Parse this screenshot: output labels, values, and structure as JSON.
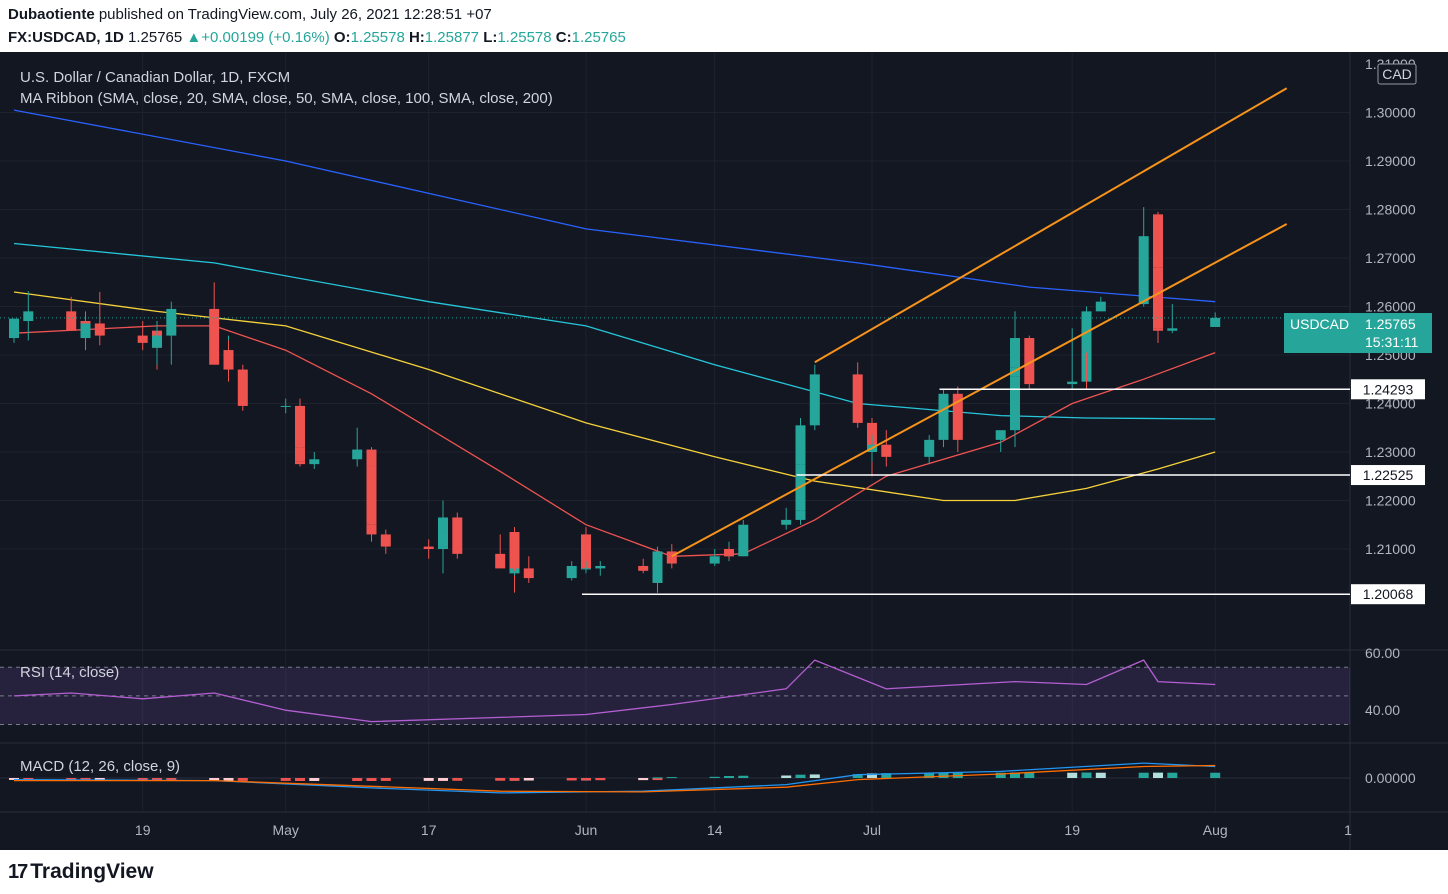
{
  "header": {
    "author": "Dubaotiente",
    "published": "published on TradingView.com, July 26, 2021 12:28:51 +07",
    "symbol": "FX:USDCAD, 1D",
    "price": "1.25765",
    "change": "+0.00199 (+0.16%)",
    "o_label": "O:",
    "o": "1.25578",
    "h_label": "H:",
    "h": "1.25877",
    "l_label": "L:",
    "l": "1.25578",
    "c_label": "C:",
    "c": "1.25765"
  },
  "legend": {
    "title": "U.S. Dollar / Canadian Dollar, 1D, FXCM",
    "ma": "MA Ribbon (SMA, close, 20, SMA, close, 50, SMA, close, 100, SMA, close, 200)",
    "rsi": "RSI (14, close)",
    "macd": "MACD (12, 26, close, 9)"
  },
  "price_scale": {
    "currency": "CAD",
    "ticks": [
      "1.30000",
      "1.29000",
      "1.28000",
      "1.27000",
      "1.26000",
      "1.25000",
      "1.24000",
      "1.23000",
      "1.22000",
      "1.21000"
    ],
    "top_partial": "1.31000"
  },
  "last_price": {
    "symbol": "USDCAD",
    "value": "1.25765",
    "countdown": "15:31:11"
  },
  "levels": [
    {
      "value": 1.24293,
      "label": "1.24293",
      "from": "2021-07-08"
    },
    {
      "value": 1.22525,
      "label": "1.22525",
      "from": "2021-06-23"
    },
    {
      "value": 1.20068,
      "label": "1.20068",
      "from": "2021-06-01"
    }
  ],
  "rsi_scale": [
    "60.00",
    "40.00"
  ],
  "macd_scale": [
    "0.00000"
  ],
  "time_labels": [
    "19",
    "May",
    "17",
    "Jun",
    "14",
    "Jul",
    "19",
    "Aug",
    "1"
  ],
  "colors": {
    "up": "#26a69a",
    "down": "#ef5350",
    "sma20": "#ef5350",
    "sma50": "#f5d13b",
    "sma100": "#26c6da",
    "sma200": "#2962ff",
    "channel": "#f7931a",
    "rsi": "#b45fd1",
    "macd": "#2196f3",
    "signal": "#ff6d00"
  },
  "footer": {
    "brand": "TradingView"
  },
  "chart_data": {
    "type": "candlestick",
    "symbol": "USDCAD",
    "timeframe": "1D",
    "x_range": [
      "2021-04-08",
      "2021-08-02"
    ],
    "y_range": [
      1.195,
      1.315
    ],
    "candles": [
      {
        "date": "2021-04-08",
        "o": 1.2535,
        "h": 1.2575,
        "l": 1.2525,
        "c": 1.2575
      },
      {
        "date": "2021-04-09",
        "o": 1.257,
        "h": 1.2632,
        "l": 1.253,
        "c": 1.259
      },
      {
        "date": "2021-04-12",
        "o": 1.259,
        "h": 1.262,
        "l": 1.255,
        "c": 1.255
      },
      {
        "date": "2021-04-13",
        "o": 1.2555,
        "h": 1.259,
        "l": 1.251,
        "c": 1.257
      },
      {
        "date": "2021-04-14",
        "o": 1.257,
        "h": 1.258,
        "l": 1.253,
        "c": 1.2535
      },
      {
        "date": "2021-04-15",
        "o": 1.2535,
        "h": 1.258,
        "l": 1.253,
        "c": 1.2565
      },
      {
        "date": "2021-04-16",
        "o": 1.2565,
        "h": 1.263,
        "l": 1.252,
        "c": 1.254
      },
      {
        "date": "2021-04-19",
        "o": 1.254,
        "h": 1.257,
        "l": 1.251,
        "c": 1.2525
      },
      {
        "date": "2021-04-20",
        "o": 1.2525,
        "h": 1.257,
        "l": 1.249,
        "c": 1.255
      },
      {
        "date": "2021-04-21",
        "o": 1.255,
        "h": 1.256,
        "l": 1.247,
        "c": 1.2515
      },
      {
        "date": "2021-04-22",
        "o": 1.2515,
        "h": 1.256,
        "l": 1.248,
        "c": 1.254
      },
      {
        "date": "2021-04-23",
        "o": 1.254,
        "h": 1.261,
        "l": 1.248,
        "c": 1.2595
      },
      {
        "date": "2021-04-26",
        "o": 1.2595,
        "h": 1.265,
        "l": 1.248,
        "c": 1.248
      },
      {
        "date": "2021-04-27",
        "o": 1.248,
        "h": 1.254,
        "l": 1.2455,
        "c": 1.251
      },
      {
        "date": "2021-04-28",
        "o": 1.251,
        "h": 1.253,
        "l": 1.248,
        "c": 1.25
      },
      {
        "date": "2021-04-29",
        "o": 1.25,
        "h": 1.251,
        "l": 1.2445,
        "c": 1.247
      },
      {
        "date": "2021-04-30",
        "o": 1.247,
        "h": 1.248,
        "l": 1.2385,
        "c": 1.2395
      },
      {
        "date": "2021-05-03",
        "o": 1.2395,
        "h": 1.241,
        "l": 1.238,
        "c": 1.2395
      },
      {
        "date": "2021-05-04",
        "o": 1.2395,
        "h": 1.241,
        "l": 1.231,
        "c": 1.231
      },
      {
        "date": "2021-05-05",
        "o": 1.231,
        "h": 1.232,
        "l": 1.227,
        "c": 1.228
      },
      {
        "date": "2021-05-06",
        "o": 1.228,
        "h": 1.229,
        "l": 1.227,
        "c": 1.2275
      },
      {
        "date": "2021-05-07",
        "o": 1.2275,
        "h": 1.23,
        "l": 1.2265,
        "c": 1.2285
      },
      {
        "date": "2021-05-10",
        "o": 1.2285,
        "h": 1.235,
        "l": 1.227,
        "c": 1.2305
      },
      {
        "date": "2021-05-11",
        "o": 1.2305,
        "h": 1.231,
        "l": 1.227,
        "c": 1.227
      },
      {
        "date": "2021-05-12",
        "o": 1.227,
        "h": 1.2285,
        "l": 1.215,
        "c": 1.215
      },
      {
        "date": "2021-05-13",
        "o": 1.215,
        "h": 1.2165,
        "l": 1.2115,
        "c": 1.213
      },
      {
        "date": "2021-05-14",
        "o": 1.213,
        "h": 1.214,
        "l": 1.209,
        "c": 1.2105
      },
      {
        "date": "2021-05-17",
        "o": 1.2105,
        "h": 1.212,
        "l": 1.208,
        "c": 1.21
      },
      {
        "date": "2021-05-18",
        "o": 1.21,
        "h": 1.213,
        "l": 1.205,
        "c": 1.2105
      },
      {
        "date": "2021-05-19",
        "o": 1.2105,
        "h": 1.2165,
        "l": 1.205,
        "c": 1.2135
      },
      {
        "date": "2021-05-20",
        "o": 1.2135,
        "h": 1.22,
        "l": 1.211,
        "c": 1.2165
      },
      {
        "date": "2021-05-21",
        "o": 1.2165,
        "h": 1.2175,
        "l": 1.208,
        "c": 1.209
      },
      {
        "date": "2021-05-24",
        "o": 1.209,
        "h": 1.213,
        "l": 1.206,
        "c": 1.206
      },
      {
        "date": "2021-05-25",
        "o": 1.206,
        "h": 1.207,
        "l": 1.201,
        "c": 1.205
      },
      {
        "date": "2021-05-26",
        "o": 1.205,
        "h": 1.2145,
        "l": 1.2045,
        "c": 1.2135
      },
      {
        "date": "2021-05-27",
        "o": 1.2135,
        "h": 1.2145,
        "l": 1.2055,
        "c": 1.206
      },
      {
        "date": "2021-05-28",
        "o": 1.206,
        "h": 1.2085,
        "l": 1.203,
        "c": 1.204
      },
      {
        "date": "2021-05-31",
        "o": 1.204,
        "h": 1.2075,
        "l": 1.2035,
        "c": 1.2065
      },
      {
        "date": "2021-06-01",
        "o": 1.2065,
        "h": 1.214,
        "l": 1.205,
        "c": 1.213
      },
      {
        "date": "2021-06-02",
        "o": 1.213,
        "h": 1.2145,
        "l": 1.206,
        "c": 1.206
      },
      {
        "date": "2021-06-03",
        "o": 1.206,
        "h": 1.2075,
        "l": 1.205,
        "c": 1.206
      },
      {
        "date": "2021-06-04",
        "o": 1.206,
        "h": 1.2075,
        "l": 1.2045,
        "c": 1.2065
      },
      {
        "date": "2021-06-07",
        "o": 1.2065,
        "h": 1.208,
        "l": 1.205,
        "c": 1.2055
      },
      {
        "date": "2021-06-08",
        "o": 1.2055,
        "h": 1.2075,
        "l": 1.201,
        "c": 1.2065
      },
      {
        "date": "2021-06-09",
        "o": 1.2065,
        "h": 1.2095,
        "l": 1.201,
        "c": 1.203
      },
      {
        "date": "2021-06-10",
        "o": 1.203,
        "h": 1.2105,
        "l": 1.2025,
        "c": 1.2095
      },
      {
        "date": "2021-06-11",
        "o": 1.2095,
        "h": 1.211,
        "l": 1.206,
        "c": 1.207
      },
      {
        "date": "2021-06-14",
        "o": 1.207,
        "h": 1.21,
        "l": 1.2065,
        "c": 1.2085
      },
      {
        "date": "2021-06-15",
        "o": 1.2085,
        "h": 1.2115,
        "l": 1.2075,
        "c": 1.2095
      },
      {
        "date": "2021-06-16",
        "o": 1.2095,
        "h": 1.211,
        "l": 1.208,
        "c": 1.21
      },
      {
        "date": "2021-06-17",
        "o": 1.21,
        "h": 1.2105,
        "l": 1.208,
        "c": 1.2085
      },
      {
        "date": "2021-06-18",
        "o": 1.2085,
        "h": 1.216,
        "l": 1.2085,
        "c": 1.215
      },
      {
        "date": "2021-06-21",
        "o": 1.215,
        "h": 1.2185,
        "l": 1.214,
        "c": 1.216
      },
      {
        "date": "2021-06-22",
        "o": 1.216,
        "h": 1.22,
        "l": 1.215,
        "c": 1.218
      },
      {
        "date": "2021-06-23",
        "o": 1.218,
        "h": 1.229,
        "l": 1.2175,
        "c": 1.2275
      },
      {
        "date": "2021-06-24",
        "o": 1.2275,
        "h": 1.237,
        "l": 1.2265,
        "c": 1.2355
      },
      {
        "date": "2021-06-25",
        "o": 1.2355,
        "h": 1.248,
        "l": 1.2345,
        "c": 1.246
      },
      {
        "date": "2021-06-28",
        "o": 1.246,
        "h": 1.2485,
        "l": 1.235,
        "c": 1.236
      },
      {
        "date": "2021-06-29",
        "o": 1.236,
        "h": 1.237,
        "l": 1.23,
        "c": 1.231
      },
      {
        "date": "2021-06-30",
        "o": 1.231,
        "h": 1.232,
        "l": 1.225,
        "c": 1.23
      },
      {
        "date": "2021-07-01",
        "o": 1.23,
        "h": 1.2335,
        "l": 1.228,
        "c": 1.2315
      },
      {
        "date": "2021-07-02",
        "o": 1.2315,
        "h": 1.2345,
        "l": 1.227,
        "c": 1.229
      },
      {
        "date": "2021-07-05",
        "o": 1.229,
        "h": 1.2335,
        "l": 1.2275,
        "c": 1.2325
      },
      {
        "date": "2021-07-06",
        "o": 1.2325,
        "h": 1.242,
        "l": 1.231,
        "c": 1.2395
      },
      {
        "date": "2021-07-07",
        "o": 1.2395,
        "h": 1.242,
        "l": 1.238,
        "c": 1.239
      },
      {
        "date": "2021-07-08",
        "o": 1.239,
        "h": 1.243,
        "l": 1.237,
        "c": 1.242
      },
      {
        "date": "2021-07-09",
        "o": 1.242,
        "h": 1.2435,
        "l": 1.23,
        "c": 1.2325
      },
      {
        "date": "2021-07-12",
        "o": 1.2325,
        "h": 1.234,
        "l": 1.23,
        "c": 1.2345
      },
      {
        "date": "2021-07-13",
        "o": 1.2345,
        "h": 1.246,
        "l": 1.231,
        "c": 1.2455
      },
      {
        "date": "2021-07-14",
        "o": 1.2455,
        "h": 1.249,
        "l": 1.243,
        "c": 1.2475
      },
      {
        "date": "2021-07-15",
        "o": 1.2475,
        "h": 1.259,
        "l": 1.247,
        "c": 1.2535
      },
      {
        "date": "2021-07-16",
        "o": 1.2535,
        "h": 1.254,
        "l": 1.243,
        "c": 1.244
      },
      {
        "date": "2021-07-19",
        "o": 1.244,
        "h": 1.2555,
        "l": 1.243,
        "c": 1.2445
      },
      {
        "date": "2021-07-20",
        "o": 1.2445,
        "h": 1.2535,
        "l": 1.244,
        "c": 1.252
      },
      {
        "date": "2021-07-21",
        "o": 1.252,
        "h": 1.2535,
        "l": 1.243,
        "c": 1.251
      },
      {
        "date": "2021-07-22",
        "o": 1.251,
        "h": 1.26,
        "l": 1.2505,
        "c": 1.259
      },
      {
        "date": "2021-07-23",
        "o": 1.259,
        "h": 1.262,
        "l": 1.259,
        "c": 1.261
      },
      {
        "date": "2021-07-26",
        "o": 1.2605,
        "h": 1.2805,
        "l": 1.26,
        "c": 1.2745
      },
      {
        "date": "2021-07-27",
        "o": 1.279,
        "h": 1.2795,
        "l": 1.2665,
        "c": 1.268
      },
      {
        "date": "2021-07-28",
        "o": 1.268,
        "h": 1.273,
        "l": 1.2525,
        "c": 1.2555
      },
      {
        "date": "2021-07-29",
        "o": 1.2555,
        "h": 1.258,
        "l": 1.2525,
        "c": 1.255
      },
      {
        "date": "2021-07-30",
        "o": 1.255,
        "h": 1.2605,
        "l": 1.2545,
        "c": 1.2555
      },
      {
        "date": "2021-08-02",
        "o": 1.25578,
        "h": 1.25877,
        "l": 1.25578,
        "c": 1.25765
      }
    ],
    "sma20": [
      [
        "2021-04-08",
        1.2545
      ],
      [
        "2021-04-20",
        1.256
      ],
      [
        "2021-04-26",
        1.256
      ],
      [
        "2021-05-03",
        1.251
      ],
      [
        "2021-05-12",
        1.242
      ],
      [
        "2021-05-24",
        1.226
      ],
      [
        "2021-06-01",
        1.215
      ],
      [
        "2021-06-11",
        1.2085
      ],
      [
        "2021-06-18",
        1.209
      ],
      [
        "2021-06-25",
        1.216
      ],
      [
        "2021-07-02",
        1.225
      ],
      [
        "2021-07-12",
        1.232
      ],
      [
        "2021-07-19",
        1.24
      ],
      [
        "2021-07-26",
        1.245
      ],
      [
        "2021-08-02",
        1.2505
      ]
    ],
    "sma50": [
      [
        "2021-04-08",
        1.263
      ],
      [
        "2021-04-20",
        1.259
      ],
      [
        "2021-05-03",
        1.256
      ],
      [
        "2021-05-17",
        1.247
      ],
      [
        "2021-06-01",
        1.236
      ],
      [
        "2021-06-14",
        1.229
      ],
      [
        "2021-06-25",
        1.224
      ],
      [
        "2021-07-07",
        1.22
      ],
      [
        "2021-07-13",
        1.22
      ],
      [
        "2021-07-22",
        1.2225
      ],
      [
        "2021-07-28",
        1.2265
      ],
      [
        "2021-08-02",
        1.23
      ]
    ],
    "sma100": [
      [
        "2021-04-08",
        1.273
      ],
      [
        "2021-04-26",
        1.269
      ],
      [
        "2021-05-17",
        1.261
      ],
      [
        "2021-06-01",
        1.256
      ],
      [
        "2021-06-14",
        1.248
      ],
      [
        "2021-06-28",
        1.24
      ],
      [
        "2021-07-12",
        1.2375
      ],
      [
        "2021-07-22",
        1.237
      ],
      [
        "2021-08-02",
        1.2368
      ]
    ],
    "sma200": [
      [
        "2021-04-08",
        1.3005
      ],
      [
        "2021-05-03",
        1.29
      ],
      [
        "2021-06-01",
        1.276
      ],
      [
        "2021-06-28",
        1.269
      ],
      [
        "2021-07-16",
        1.264
      ],
      [
        "2021-08-02",
        1.261
      ]
    ],
    "channel_upper": [
      [
        "2021-06-25",
        1.2485
      ],
      [
        "2021-08-09",
        1.305
      ]
    ],
    "channel_lower": [
      [
        "2021-06-11",
        1.2085
      ],
      [
        "2021-08-09",
        1.277
      ]
    ],
    "rsi": {
      "ylim": [
        20,
        80
      ],
      "bands": [
        30,
        50,
        70
      ],
      "values": [
        [
          "2021-04-08",
          50
        ],
        [
          "2021-04-12",
          52
        ],
        [
          "2021-04-19",
          48
        ],
        [
          "2021-04-26",
          52
        ],
        [
          "2021-05-03",
          40
        ],
        [
          "2021-05-12",
          32
        ],
        [
          "2021-05-24",
          35
        ],
        [
          "2021-06-01",
          37
        ],
        [
          "2021-06-11",
          44
        ],
        [
          "2021-06-21",
          55
        ],
        [
          "2021-06-25",
          75
        ],
        [
          "2021-07-02",
          55
        ],
        [
          "2021-07-13",
          60
        ],
        [
          "2021-07-22",
          58
        ],
        [
          "2021-07-26",
          75
        ],
        [
          "2021-07-28",
          60
        ],
        [
          "2021-08-02",
          58
        ]
      ]
    },
    "macd": {
      "macd_line": [
        [
          "2021-04-08",
          -0.0005
        ],
        [
          "2021-04-26",
          -0.0008
        ],
        [
          "2021-05-12",
          -0.003
        ],
        [
          "2021-05-24",
          -0.0045
        ],
        [
          "2021-06-07",
          -0.004
        ],
        [
          "2021-06-21",
          -0.002
        ],
        [
          "2021-06-28",
          0.001
        ],
        [
          "2021-07-12",
          0.002
        ],
        [
          "2021-07-26",
          0.0045
        ],
        [
          "2021-08-02",
          0.0035
        ]
      ],
      "signal_line": [
        [
          "2021-04-08",
          -0.0008
        ],
        [
          "2021-04-26",
          -0.0008
        ],
        [
          "2021-05-12",
          -0.0025
        ],
        [
          "2021-05-24",
          -0.004
        ],
        [
          "2021-06-07",
          -0.0042
        ],
        [
          "2021-06-21",
          -0.0028
        ],
        [
          "2021-06-28",
          -0.0005
        ],
        [
          "2021-07-12",
          0.0012
        ],
        [
          "2021-07-26",
          0.0035
        ],
        [
          "2021-08-02",
          0.0038
        ]
      ]
    }
  }
}
